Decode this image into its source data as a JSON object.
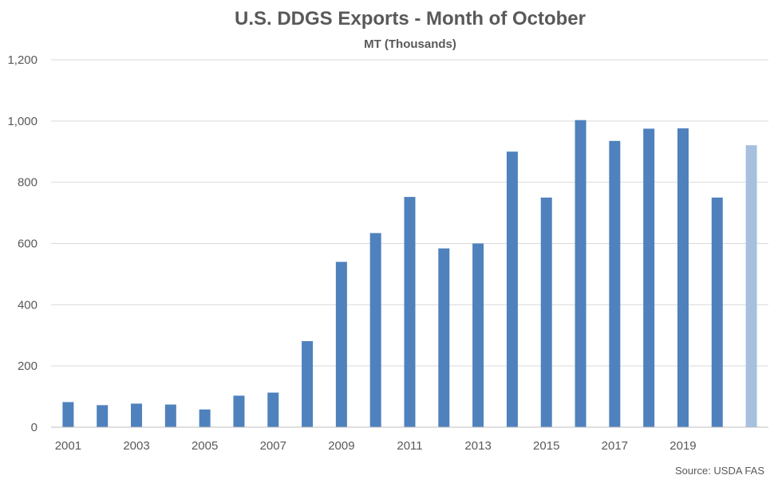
{
  "chart_data": {
    "type": "bar",
    "title": "U.S. DDGS Exports - Month of October",
    "subtitle": "MT (Thousands)",
    "xlabel": "",
    "ylabel": "",
    "categories": [
      "2001",
      "2002",
      "2003",
      "2004",
      "2005",
      "2006",
      "2007",
      "2008",
      "2009",
      "2010",
      "2011",
      "2012",
      "2013",
      "2014",
      "2015",
      "2016",
      "2017",
      "2018",
      "2019",
      "2020",
      "2021"
    ],
    "x_tick_labels": [
      "2001",
      "2003",
      "2005",
      "2007",
      "2009",
      "2011",
      "2013",
      "2015",
      "2017",
      "2019"
    ],
    "values": [
      82,
      72,
      77,
      74,
      58,
      103,
      113,
      281,
      540,
      634,
      752,
      584,
      600,
      900,
      750,
      1003,
      935,
      975,
      976,
      750,
      921
    ],
    "ylim": [
      0,
      1200
    ],
    "y_ticks": [
      0,
      200,
      400,
      600,
      800,
      1000,
      1200
    ],
    "y_tick_labels": [
      "0",
      "200",
      "400",
      "600",
      "800",
      "1,000",
      "1,200"
    ],
    "grid": true,
    "legend": "none",
    "colors": {
      "bar": "#4f81bd",
      "highlight": "#a7c0e0"
    },
    "highlight_category": "2021",
    "source": "Source: USDA FAS"
  }
}
